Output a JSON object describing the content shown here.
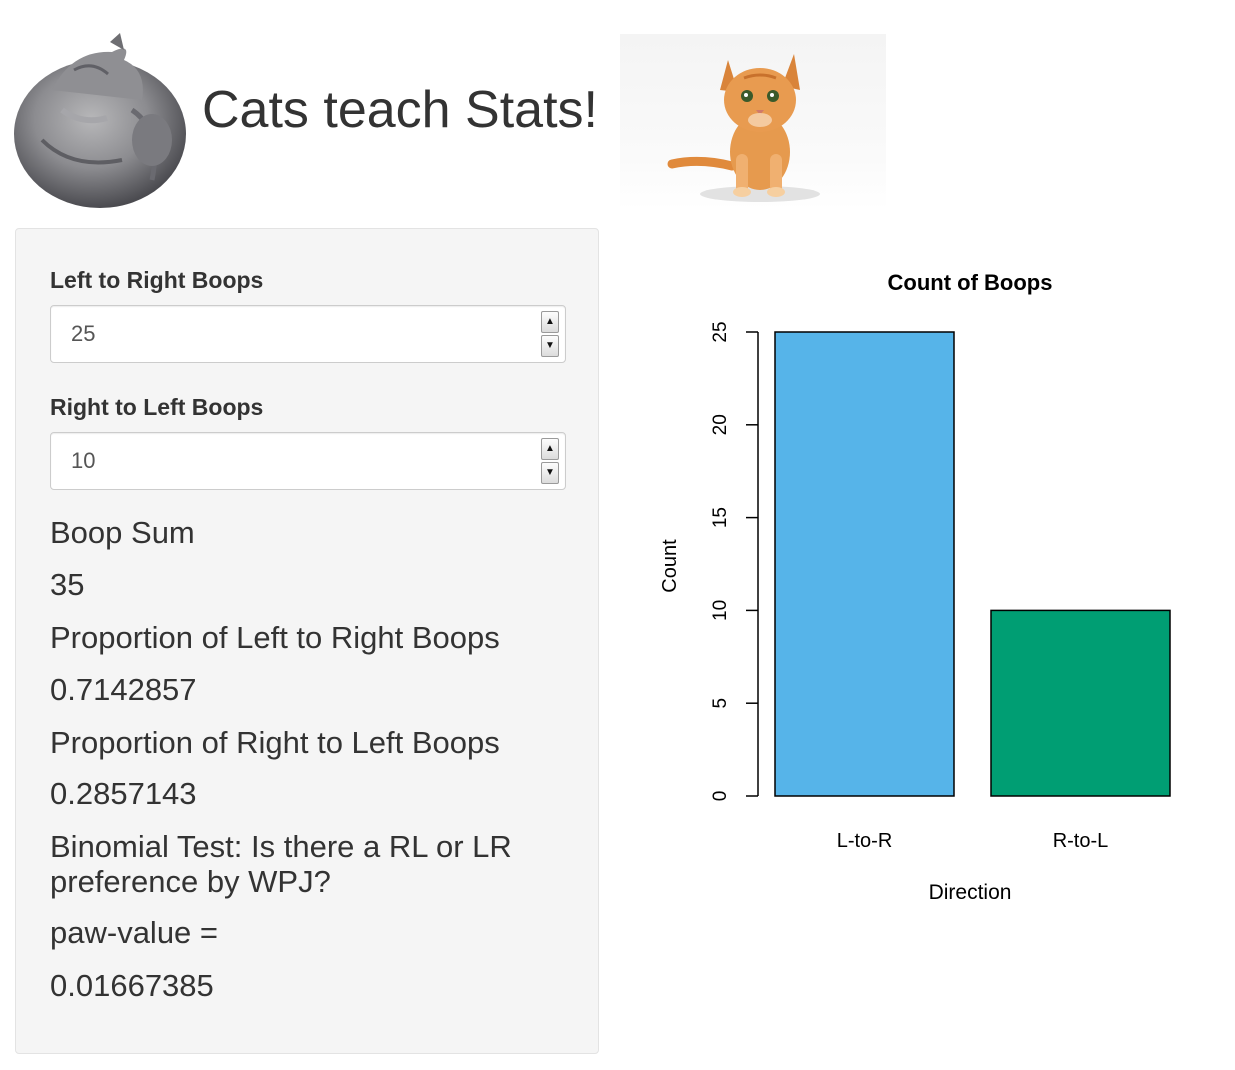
{
  "header": {
    "title": "Cats teach Stats!"
  },
  "inputs": {
    "lr_label": "Left to Right Boops",
    "lr_value": "25",
    "rl_label": "Right to Left Boops",
    "rl_value": "10"
  },
  "outputs": {
    "sum_label": "Boop Sum",
    "sum_value": "35",
    "prop_lr_label": "Proportion of Left to Right Boops",
    "prop_lr_value": "0.7142857",
    "prop_rl_label": "Proportion of Right to Left Boops",
    "prop_rl_value": "0.2857143",
    "binom_label": "Binomial Test: Is there a RL or LR preference by WPJ?",
    "pval_label": "paw-value =",
    "pval_value": "0.01667385"
  },
  "icons": {
    "cat_left": "sleeping-cat-image",
    "cat_right": "orange-kitten-image",
    "spin_up": "caret-up-icon",
    "spin_down": "caret-down-icon"
  },
  "chart_data": {
    "type": "bar",
    "title": "Count of Boops",
    "xlabel": "Direction",
    "ylabel": "Count",
    "categories": [
      "L-to-R",
      "R-to-L"
    ],
    "values": [
      25,
      10
    ],
    "colors": [
      "#56b4e9",
      "#009e73"
    ],
    "ylim": [
      0,
      25
    ],
    "yticks": [
      0,
      5,
      10,
      15,
      20,
      25
    ],
    "grid": false
  }
}
